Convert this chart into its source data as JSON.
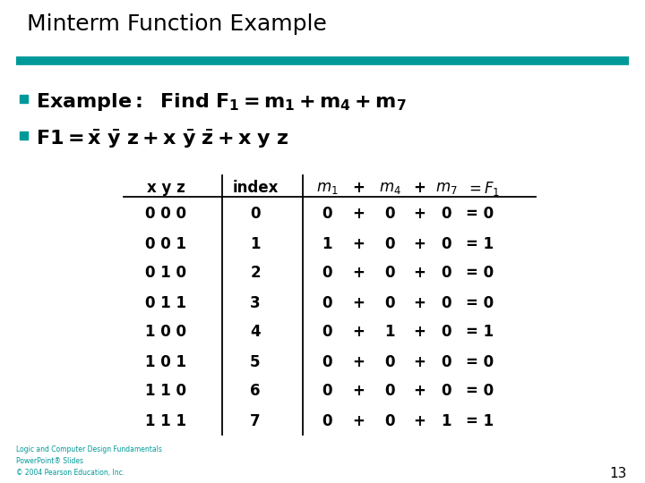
{
  "title": "Minterm Function Example",
  "title_color": "#000000",
  "title_fontsize": 18,
  "title_fontweight": "normal",
  "teal_bar_color": "#009999",
  "bullet_color": "#009999",
  "bg_color": "#ffffff",
  "table_xyz": [
    "0 0 0",
    "0 0 1",
    "0 1 0",
    "0 1 1",
    "1 0 0",
    "1 0 1",
    "1 1 0",
    "1 1 1"
  ],
  "table_index": [
    0,
    1,
    2,
    3,
    4,
    5,
    6,
    7
  ],
  "table_m1": [
    0,
    1,
    0,
    0,
    0,
    0,
    0,
    0
  ],
  "table_m4": [
    0,
    0,
    0,
    0,
    1,
    0,
    0,
    0
  ],
  "table_m7": [
    0,
    0,
    0,
    0,
    0,
    0,
    0,
    1
  ],
  "table_F1": [
    0,
    1,
    0,
    0,
    1,
    0,
    0,
    1
  ],
  "footer_text": "Logic and Computer Design Fundamentals\nPowerPoint® Slides\n© 2004 Pearson Education, Inc.",
  "footer_color": "#009999",
  "footer_fontsize": 5.5,
  "page_number": "13",
  "page_number_fontsize": 11,
  "table_fontsize": 12,
  "bullet_fontsize": 16
}
